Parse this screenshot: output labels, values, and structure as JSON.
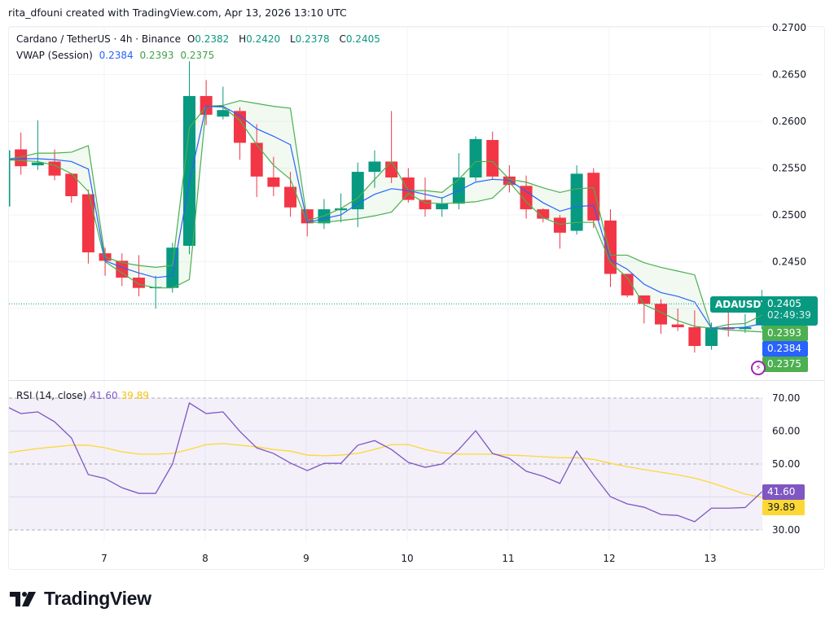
{
  "credit": "rita_dfouni created with TradingView.com, Apr 13, 2026 13:10 UTC",
  "legend": {
    "symbol": "Cardano / TetherUS · 4h · Binance",
    "o_label": "O",
    "o": "0.2382",
    "h_label": "H",
    "h": "0.2420",
    "l_label": "L",
    "l": "0.2378",
    "c_label": "C",
    "c": "0.2405",
    "vwap_label": "VWAP (Session)",
    "vwap": "0.2384",
    "vwap_upper": "0.2393",
    "vwap_lower": "0.2375"
  },
  "rsi_legend": {
    "label": "RSI (14, close)",
    "rsi": "41.60",
    "ma": "39.89"
  },
  "tags": {
    "symbol": "ADAUSDT",
    "price": "0.2405",
    "countdown": "02:49:39",
    "vwap_upper": "0.2393",
    "vwap": "0.2384",
    "vwap_lower": "0.2375",
    "rsi": "41.60",
    "rsi_ma": "39.89"
  },
  "logo": "TradingView",
  "colors": {
    "up": "#089981",
    "down": "#f23645",
    "vwap": "#2962ff",
    "bands": "#4caf50",
    "rsi": "#7e57c2",
    "rsi_ma": "#fdd835"
  },
  "chart_data": [
    {
      "type": "candlestick",
      "price_ticks": [
        "0.2700",
        "0.2650",
        "0.2600",
        "0.2550",
        "0.2500",
        "0.2450"
      ],
      "ylim": [
        0.233,
        0.27
      ],
      "x_ticks": [
        "7",
        "8",
        "9",
        "10",
        "11",
        "12",
        "13"
      ],
      "grid": true,
      "ohlc": [
        [
          0.2509,
          0.2569,
          0.2505,
          0.2569
        ],
        [
          0.257,
          0.2588,
          0.2543,
          0.2552
        ],
        [
          0.2553,
          0.2601,
          0.2548,
          0.2556
        ],
        [
          0.2557,
          0.257,
          0.2537,
          0.2542
        ],
        [
          0.2544,
          0.2544,
          0.2513,
          0.252
        ],
        [
          0.2522,
          0.2527,
          0.2448,
          0.246
        ],
        [
          0.2459,
          0.2465,
          0.2435,
          0.2451
        ],
        [
          0.2451,
          0.2459,
          0.2424,
          0.2433
        ],
        [
          0.2433,
          0.2457,
          0.2413,
          0.2422
        ],
        [
          0.2422,
          0.2435,
          0.24,
          0.2423
        ],
        [
          0.2422,
          0.247,
          0.2417,
          0.2465
        ],
        [
          0.2467,
          0.2664,
          0.2458,
          0.2627
        ],
        [
          0.2627,
          0.2644,
          0.2596,
          0.2607
        ],
        [
          0.2605,
          0.2637,
          0.2602,
          0.2612
        ],
        [
          0.2611,
          0.2615,
          0.2559,
          0.2577
        ],
        [
          0.2577,
          0.2597,
          0.2519,
          0.2541
        ],
        [
          0.254,
          0.2562,
          0.252,
          0.253
        ],
        [
          0.253,
          0.2546,
          0.2498,
          0.2508
        ],
        [
          0.2506,
          0.2506,
          0.2477,
          0.2491
        ],
        [
          0.2491,
          0.2517,
          0.2485,
          0.2506
        ],
        [
          0.2505,
          0.2523,
          0.2492,
          0.2507
        ],
        [
          0.2506,
          0.2556,
          0.2487,
          0.2546
        ],
        [
          0.2546,
          0.2569,
          0.2529,
          0.2557
        ],
        [
          0.2557,
          0.2611,
          0.2534,
          0.254
        ],
        [
          0.254,
          0.255,
          0.2513,
          0.2516
        ],
        [
          0.2516,
          0.254,
          0.2498,
          0.2506
        ],
        [
          0.2506,
          0.2519,
          0.2498,
          0.2512
        ],
        [
          0.2512,
          0.2566,
          0.2506,
          0.254
        ],
        [
          0.254,
          0.2584,
          0.2536,
          0.2581
        ],
        [
          0.258,
          0.2589,
          0.2538,
          0.2541
        ],
        [
          0.2541,
          0.2553,
          0.2524,
          0.2532
        ],
        [
          0.2531,
          0.2542,
          0.2496,
          0.2506
        ],
        [
          0.2506,
          0.2507,
          0.2492,
          0.2496
        ],
        [
          0.2497,
          0.25,
          0.2464,
          0.2481
        ],
        [
          0.2483,
          0.2553,
          0.2479,
          0.2544
        ],
        [
          0.2545,
          0.255,
          0.2486,
          0.2494
        ],
        [
          0.2494,
          0.2506,
          0.2423,
          0.2437
        ],
        [
          0.2437,
          0.2437,
          0.2412,
          0.2414
        ],
        [
          0.2414,
          0.2414,
          0.2384,
          0.2405
        ],
        [
          0.2405,
          0.241,
          0.2373,
          0.2383
        ],
        [
          0.2383,
          0.24,
          0.2376,
          0.238
        ],
        [
          0.238,
          0.2398,
          0.2353,
          0.236
        ],
        [
          0.236,
          0.2385,
          0.2356,
          0.238
        ],
        [
          0.238,
          0.2396,
          0.237,
          0.2378
        ],
        [
          0.2378,
          0.2394,
          0.2374,
          0.238
        ],
        [
          0.2382,
          0.242,
          0.2378,
          0.2405
        ]
      ],
      "vwap": [
        0.2559,
        0.256,
        0.256,
        0.2559,
        0.2557,
        0.2549,
        0.2451,
        0.2444,
        0.2438,
        0.2433,
        0.2435,
        0.2535,
        0.2616,
        0.2616,
        0.2606,
        0.2592,
        0.2584,
        0.2575,
        0.2492,
        0.2496,
        0.25,
        0.2512,
        0.2522,
        0.2528,
        0.2526,
        0.2522,
        0.2518,
        0.2526,
        0.2535,
        0.2538,
        0.2537,
        0.2525,
        0.2513,
        0.2504,
        0.2509,
        0.251,
        0.2452,
        0.2442,
        0.2426,
        0.2417,
        0.2413,
        0.2407,
        0.2379,
        0.2379,
        0.238,
        0.2384
      ],
      "vwap_upper": [
        0.2559,
        0.2562,
        0.2566,
        0.2566,
        0.2567,
        0.2574,
        0.2455,
        0.2449,
        0.2446,
        0.2444,
        0.2446,
        0.2593,
        0.2616,
        0.2617,
        0.2622,
        0.2619,
        0.2616,
        0.2614,
        0.2494,
        0.2499,
        0.2507,
        0.2518,
        0.2538,
        0.2557,
        0.2526,
        0.2526,
        0.2524,
        0.2538,
        0.2557,
        0.2557,
        0.2538,
        0.2535,
        0.2529,
        0.2524,
        0.2528,
        0.2529,
        0.2457,
        0.2457,
        0.2449,
        0.2444,
        0.244,
        0.2436,
        0.2379,
        0.2383,
        0.2384,
        0.2393
      ],
      "vwap_lower": [
        0.2559,
        0.2558,
        0.2557,
        0.2553,
        0.2544,
        0.2525,
        0.245,
        0.2438,
        0.2426,
        0.2422,
        0.2422,
        0.2431,
        0.2616,
        0.2615,
        0.2601,
        0.2575,
        0.2553,
        0.2538,
        0.2492,
        0.2492,
        0.2494,
        0.2496,
        0.2499,
        0.2503,
        0.2523,
        0.2513,
        0.2512,
        0.2513,
        0.2514,
        0.2518,
        0.2535,
        0.2514,
        0.2497,
        0.249,
        0.2492,
        0.2492,
        0.2449,
        0.2433,
        0.2404,
        0.2396,
        0.2387,
        0.2381,
        0.2379,
        0.2377,
        0.2376,
        0.2375
      ],
      "last_price": 0.2405
    },
    {
      "type": "line",
      "title": "RSI (14, close)",
      "y_ticks": [
        "70.00",
        "60.00",
        "50.00",
        "30.00"
      ],
      "ylim": [
        27,
        72
      ],
      "band": [
        30,
        70
      ],
      "series": [
        {
          "values": [
            67.8,
            65.3,
            65.8,
            62.8,
            57.9,
            46.8,
            45.6,
            42.8,
            41.1,
            41.1,
            50.0,
            68.5,
            65.3,
            65.8,
            59.9,
            54.9,
            53.2,
            50.3,
            48.0,
            50.2,
            50.2,
            55.7,
            57.1,
            54.4,
            50.5,
            49.0,
            50.0,
            54.4,
            60.1,
            53.2,
            51.7,
            47.8,
            46.3,
            44.1,
            53.9,
            46.7,
            40.1,
            37.9,
            36.9,
            34.7,
            34.4,
            32.5,
            36.6,
            36.6,
            36.8,
            41.6
          ]
        },
        {
          "values": [
            53.2,
            54.0,
            54.7,
            55.2,
            55.7,
            55.7,
            54.9,
            53.7,
            53.0,
            53.0,
            53.2,
            54.4,
            55.9,
            56.2,
            55.7,
            55.2,
            54.4,
            53.9,
            52.7,
            52.5,
            52.7,
            53.2,
            54.4,
            55.9,
            55.9,
            54.4,
            53.4,
            53.0,
            53.0,
            53.0,
            52.7,
            52.5,
            52.2,
            51.9,
            51.9,
            51.4,
            50.2,
            49.2,
            48.3,
            47.5,
            46.7,
            45.7,
            44.3,
            42.6,
            40.9,
            39.89
          ]
        }
      ]
    }
  ]
}
